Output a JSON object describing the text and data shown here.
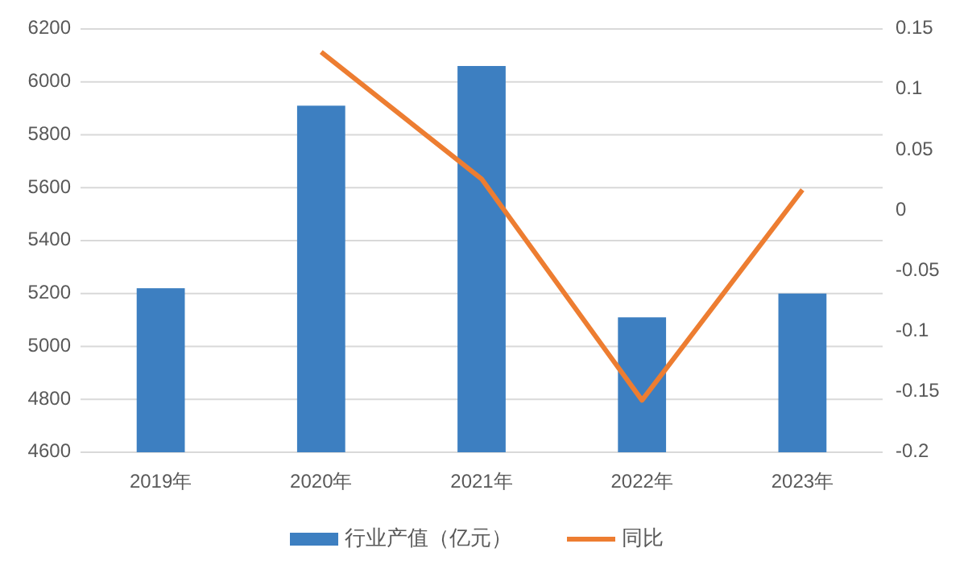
{
  "chart_data": {
    "type": "bar",
    "categories": [
      "2019年",
      "2020年",
      "2021年",
      "2022年",
      "2023年"
    ],
    "series": [
      {
        "name": "行业产值（亿元）",
        "color": "#3d7fc1",
        "values": [
          5220,
          5910,
          6060,
          5110,
          5200
        ]
      },
      {
        "name": "同比",
        "type": "line",
        "axis": "y2",
        "color": "#ed7d31",
        "values": [
          null,
          0.131,
          0.026,
          -0.157,
          0.017
        ]
      }
    ],
    "ylim": [
      4600,
      6200
    ],
    "yticks": [
      4600,
      4800,
      5000,
      5200,
      5400,
      5600,
      5800,
      6000,
      6200
    ],
    "y2lim": [
      -0.2,
      0.15
    ],
    "y2ticks": [
      -0.2,
      -0.15,
      -0.1,
      -0.05,
      0,
      0.05,
      0.1,
      0.15
    ],
    "grid": "y",
    "legend": "bottom"
  }
}
